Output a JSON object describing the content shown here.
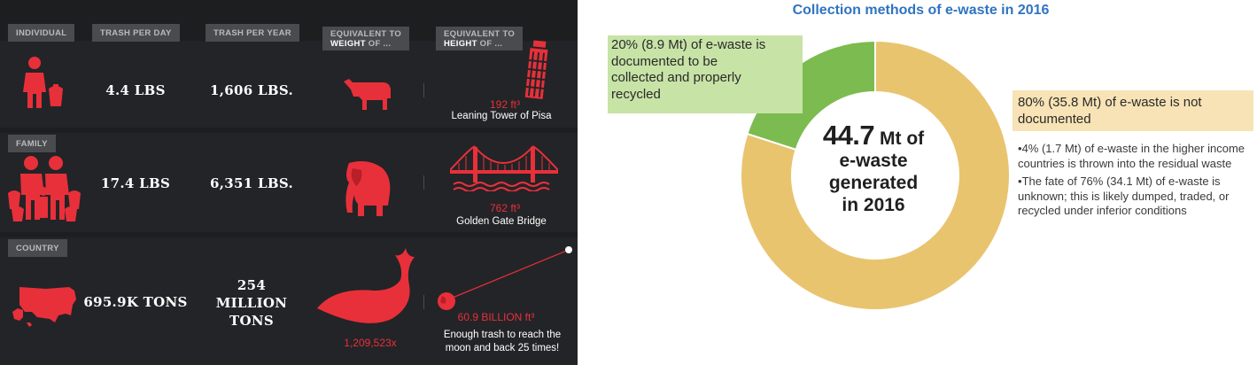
{
  "infographic": {
    "headers": {
      "individual": "INDIVIDUAL",
      "per_day": "TRASH PER DAY",
      "per_year": "TRASH PER YEAR",
      "weight_pre": "EQUIVALENT TO",
      "weight_hl": "WEIGHT",
      "weight_post": "OF ...",
      "height_pre": "EQUIVALENT TO",
      "height_hl": "HEIGHT",
      "height_post": "OF ..."
    },
    "rows": [
      {
        "label": "",
        "per_day": "4.4 LBS",
        "per_year": "1,606 LBS.",
        "weight_icon": "cow-icon",
        "height_value": "192 ft³",
        "height_caption": "Leaning Tower of Pisa",
        "height_icon": "tower-of-pisa-icon"
      },
      {
        "label": "FAMILY",
        "per_day": "17.4 LBS",
        "per_year": "6,351 LBS.",
        "weight_icon": "elephant-icon",
        "height_value": "762 ft³",
        "height_caption": "Golden Gate Bridge",
        "height_icon": "golden-gate-bridge-icon"
      },
      {
        "label": "COUNTRY",
        "per_day": "695.9K TONS",
        "per_year_1": "254",
        "per_year_2": "MILLION",
        "per_year_3": "TONS",
        "weight_icon": "whale-icon",
        "weight_value": "1,209,523x",
        "height_value": "60.9 BILLION ft³",
        "height_caption_1": "Enough trash to reach the",
        "height_caption_2": "moon and back 25 times!",
        "height_icon": "earth-moon-icon"
      }
    ],
    "colors": {
      "accent": "#e8303a",
      "background": "#1d1e20"
    }
  },
  "chart_data": {
    "type": "pie",
    "title": "Collection methods of e-waste in 2016",
    "center_value": "44.7",
    "center_unit": "Mt of",
    "center_line2": "e-waste",
    "center_line3": "generated",
    "center_line4": "in 2016",
    "total_mt": 44.7,
    "slices": [
      {
        "name": "documented",
        "percent": 20,
        "value_mt": 8.9,
        "color": "#7cbb4f",
        "label_1": "20% (8.9 Mt) of e-waste is",
        "label_2": "documented to be",
        "label_3": "collected and properly",
        "label_4": "recycled"
      },
      {
        "name": "not documented",
        "percent": 80,
        "value_mt": 35.8,
        "color": "#e9c46f",
        "label_1": "80% (35.8 Mt) of e-waste is not",
        "label_2": "documented"
      }
    ],
    "notes": [
      "4% (1.7 Mt) of e-waste in the higher income countries is thrown into the residual waste",
      "The fate of 76% (34.1 Mt) of e-waste is unknown; this is likely dumped, traded, or recycled under inferior conditions"
    ]
  }
}
